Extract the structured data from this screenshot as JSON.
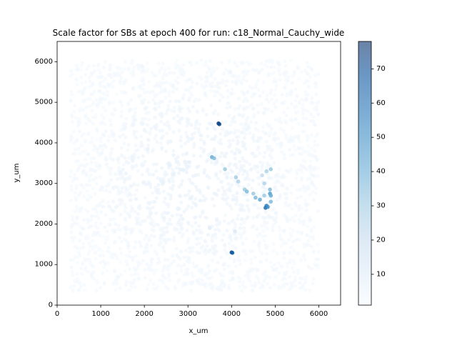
{
  "chart_data": {
    "type": "scatter",
    "title": "Scale factor for SBs at epoch 400 for run: c18_Normal_Cauchy_wide",
    "xlabel": "x_um",
    "ylabel": "y_um",
    "xlim": [
      0,
      6500
    ],
    "ylim": [
      0,
      6500
    ],
    "xticks": [
      "0",
      "1000",
      "2000",
      "3000",
      "4000",
      "5000",
      "6000"
    ],
    "yticks": [
      "0",
      "1000",
      "2000",
      "3000",
      "4000",
      "5000",
      "6000"
    ],
    "grid": false,
    "colormap": "Blues",
    "colorbar": {
      "range": [
        1,
        78
      ],
      "ticks": [
        "10",
        "20",
        "30",
        "40",
        "50",
        "60",
        "70"
      ]
    },
    "background_points": {
      "description_x_range": [
        300,
        6000
      ],
      "description_y_range": [
        350,
        6050
      ],
      "typical_value": 2
    },
    "highlight_points": [
      {
        "x": 3700,
        "y": 4480,
        "value": 75
      },
      {
        "x": 3720,
        "y": 4460,
        "value": 72
      },
      {
        "x": 3550,
        "y": 3650,
        "value": 40
      },
      {
        "x": 3600,
        "y": 3620,
        "value": 35
      },
      {
        "x": 3850,
        "y": 3350,
        "value": 30
      },
      {
        "x": 4100,
        "y": 3150,
        "value": 28
      },
      {
        "x": 4150,
        "y": 3050,
        "value": 25
      },
      {
        "x": 4300,
        "y": 2850,
        "value": 30
      },
      {
        "x": 4350,
        "y": 2800,
        "value": 35
      },
      {
        "x": 4500,
        "y": 2750,
        "value": 30
      },
      {
        "x": 4550,
        "y": 2650,
        "value": 35
      },
      {
        "x": 4650,
        "y": 2600,
        "value": 40
      },
      {
        "x": 4750,
        "y": 2700,
        "value": 30
      },
      {
        "x": 4800,
        "y": 2450,
        "value": 55
      },
      {
        "x": 4780,
        "y": 2400,
        "value": 60
      },
      {
        "x": 4830,
        "y": 2420,
        "value": 50
      },
      {
        "x": 4880,
        "y": 2750,
        "value": 45
      },
      {
        "x": 4900,
        "y": 2700,
        "value": 40
      },
      {
        "x": 4880,
        "y": 2850,
        "value": 35
      },
      {
        "x": 4900,
        "y": 3350,
        "value": 30
      },
      {
        "x": 4800,
        "y": 3300,
        "value": 25
      },
      {
        "x": 4700,
        "y": 3200,
        "value": 20
      },
      {
        "x": 4750,
        "y": 3000,
        "value": 25
      },
      {
        "x": 4900,
        "y": 2550,
        "value": 35
      },
      {
        "x": 4000,
        "y": 1300,
        "value": 70
      },
      {
        "x": 4020,
        "y": 1290,
        "value": 65
      },
      {
        "x": 4080,
        "y": 1820,
        "value": 12
      },
      {
        "x": 3500,
        "y": 1900,
        "value": 10
      }
    ]
  }
}
